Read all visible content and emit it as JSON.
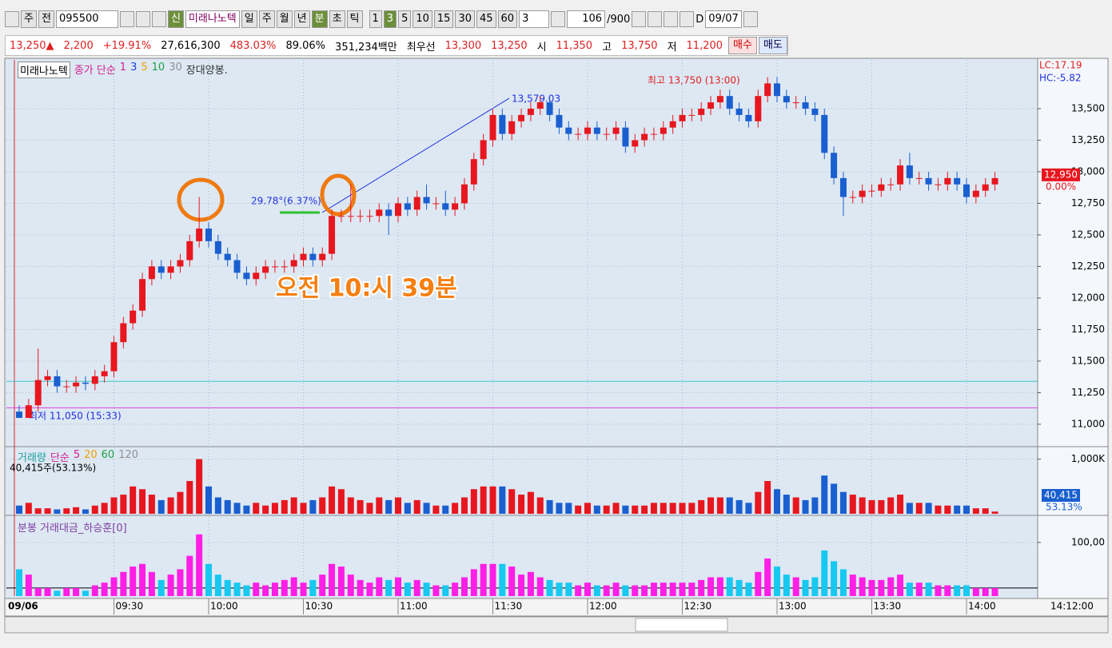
{
  "toolbar": {
    "market": "주",
    "prev": "전",
    "code": "095500",
    "new_badge": "신",
    "name": "미래나노텍",
    "periods": [
      "일",
      "주",
      "월",
      "년",
      "분",
      "초",
      "틱"
    ],
    "intervals": [
      "1",
      "3",
      "5",
      "10",
      "15",
      "30",
      "45",
      "60"
    ],
    "interval_input": "3",
    "count": "106",
    "max": "/900",
    "d_label": "D",
    "date": "09/07"
  },
  "quote": {
    "price": "13,250▲",
    "change": "2,200",
    "change_pct": "+19.91%",
    "volume": "27,616,300",
    "vol_ratio": "483.03%",
    "rate": "89.06%",
    "amount": "351,234백만",
    "best_label": "최우선",
    "ask": "13,300",
    "bid": "13,250",
    "open_label": "시",
    "open": "11,350",
    "high_label": "고",
    "high": "13,750",
    "low_label": "저",
    "low": "11,200",
    "buy": "매수",
    "sell": "매도"
  },
  "chart_data": [
    {
      "type": "candlestick",
      "title": "미래나노텍",
      "ma_label": "종가 단순",
      "ma_periods": [
        {
          "label": "1",
          "color": "#d02090"
        },
        {
          "label": "3",
          "color": "#2040d0"
        },
        {
          "label": "5",
          "color": "#f0a000"
        },
        {
          "label": "10",
          "color": "#20a040"
        },
        {
          "label": "30",
          "color": "#909090"
        }
      ],
      "note": "장대양봉.",
      "categories": [
        "09/06",
        null,
        null,
        null,
        null,
        null,
        null,
        null,
        null,
        null,
        "09:30",
        null,
        null,
        null,
        null,
        null,
        null,
        null,
        null,
        null,
        "10:00",
        null,
        null,
        null,
        null,
        null,
        null,
        null,
        null,
        null,
        "10:30",
        null,
        null,
        null,
        null,
        null,
        null,
        null,
        null,
        null,
        "11:00",
        null,
        null,
        null,
        null,
        null,
        null,
        null,
        null,
        null,
        "11:30",
        null,
        null,
        null,
        null,
        null,
        null,
        null,
        null,
        null,
        "12:00",
        null,
        null,
        null,
        null,
        null,
        null,
        null,
        null,
        null,
        "12:30",
        null,
        null,
        null,
        null,
        null,
        null,
        null,
        null,
        null,
        "13:00",
        null,
        null,
        null,
        null,
        null,
        null,
        null,
        null,
        null,
        "13:30",
        null,
        null,
        null,
        null,
        null,
        null,
        null,
        null,
        null,
        "14:00",
        null,
        null,
        null
      ],
      "open": [
        11100,
        11050,
        11150,
        11350,
        11380,
        11300,
        11300,
        11330,
        11320,
        11380,
        11420,
        11650,
        11800,
        11900,
        12150,
        12250,
        12200,
        12250,
        12300,
        12450,
        12550,
        12450,
        12350,
        12300,
        12200,
        12150,
        12200,
        12250,
        12250,
        12250,
        12300,
        12350,
        12300,
        12350,
        12650,
        12650,
        12650,
        12650,
        12650,
        12700,
        12650,
        12750,
        12700,
        12800,
        12750,
        12750,
        12700,
        12750,
        12900,
        13100,
        13250,
        13450,
        13300,
        13400,
        13450,
        13500,
        13550,
        13450,
        13350,
        13300,
        13300,
        13350,
        13300,
        13300,
        13350,
        13200,
        13250,
        13300,
        13300,
        13350,
        13400,
        13450,
        13450,
        13500,
        13550,
        13600,
        13500,
        13450,
        13400,
        13600,
        13700,
        13600,
        13550,
        13550,
        13500,
        13450,
        13150,
        12950,
        12800,
        12800,
        12850,
        12850,
        12900,
        12900,
        13050,
        12950,
        12950,
        12900,
        12900,
        12950,
        12900,
        12800,
        12850,
        12900
      ],
      "high": [
        11150,
        11200,
        11600,
        11430,
        11430,
        11350,
        11380,
        11380,
        11430,
        11470,
        11700,
        11850,
        11950,
        12200,
        12300,
        12300,
        12300,
        12350,
        12500,
        12800,
        12600,
        12500,
        12400,
        12350,
        12250,
        12250,
        12300,
        12300,
        12300,
        12350,
        12400,
        12400,
        12400,
        12700,
        12700,
        12900,
        12700,
        12700,
        12750,
        12750,
        12800,
        12800,
        12850,
        12900,
        12800,
        12850,
        12800,
        12950,
        13150,
        13300,
        13500,
        13500,
        13450,
        13500,
        13550,
        13600,
        13600,
        13500,
        13400,
        13350,
        13400,
        13400,
        13350,
        13400,
        13400,
        13300,
        13350,
        13350,
        13400,
        13450,
        13500,
        13500,
        13550,
        13600,
        13650,
        13650,
        13550,
        13500,
        13650,
        13750,
        13750,
        13650,
        13600,
        13600,
        13550,
        13500,
        13200,
        13000,
        12850,
        12900,
        12900,
        12950,
        12950,
        13100,
        13150,
        13000,
        13000,
        12950,
        13000,
        13000,
        12950,
        12900,
        12950,
        13000
      ],
      "low": [
        11050,
        11050,
        11100,
        11300,
        11250,
        11250,
        11250,
        11270,
        11270,
        11330,
        11370,
        11600,
        11750,
        11850,
        12100,
        12150,
        12150,
        12200,
        12250,
        12400,
        12400,
        12300,
        12250,
        12150,
        12100,
        12100,
        12150,
        12200,
        12200,
        12200,
        12250,
        12250,
        12250,
        12300,
        12600,
        12600,
        12600,
        12600,
        12600,
        12500,
        12600,
        12650,
        12650,
        12700,
        12700,
        12650,
        12650,
        12700,
        12850,
        13050,
        13200,
        13250,
        13250,
        13350,
        13400,
        13450,
        13400,
        13300,
        13250,
        13250,
        13250,
        13250,
        13250,
        13250,
        13150,
        13150,
        13200,
        13250,
        13250,
        13300,
        13350,
        13400,
        13400,
        13450,
        13500,
        13450,
        13400,
        13350,
        13350,
        13550,
        13550,
        13500,
        13500,
        13450,
        13400,
        13100,
        12900,
        12650,
        12750,
        12750,
        12800,
        12800,
        12850,
        12850,
        12900,
        12900,
        12850,
        12850,
        12850,
        12850,
        12750,
        12750,
        12800,
        12850
      ],
      "close": [
        11050,
        11150,
        11350,
        11380,
        11300,
        11300,
        11330,
        11320,
        11380,
        11420,
        11650,
        11800,
        11900,
        12150,
        12250,
        12200,
        12250,
        12300,
        12450,
        12550,
        12450,
        12350,
        12300,
        12200,
        12150,
        12200,
        12250,
        12250,
        12250,
        12300,
        12350,
        12300,
        12350,
        12650,
        12650,
        12650,
        12650,
        12650,
        12700,
        12650,
        12750,
        12700,
        12800,
        12750,
        12750,
        12700,
        12750,
        12900,
        13100,
        13250,
        13450,
        13300,
        13400,
        13450,
        13500,
        13550,
        13450,
        13350,
        13300,
        13300,
        13350,
        13300,
        13300,
        13350,
        13200,
        13250,
        13300,
        13300,
        13350,
        13400,
        13450,
        13450,
        13500,
        13550,
        13600,
        13500,
        13450,
        13400,
        13600,
        13700,
        13600,
        13550,
        13550,
        13500,
        13450,
        13150,
        12950,
        12800,
        12800,
        12850,
        12850,
        12900,
        12900,
        13050,
        12950,
        12950,
        12900,
        12900,
        12950,
        12900,
        12800,
        12850,
        12900,
        12950
      ],
      "up_color": "#e8161e",
      "down_color": "#1a5fd0",
      "ylim": [
        10835,
        13886
      ],
      "yticks": [
        {
          "value": 11000,
          "label": "11,000"
        },
        {
          "value": 11250,
          "label": "11,250"
        },
        {
          "value": 11500,
          "label": "11,500"
        },
        {
          "value": 11750,
          "label": "11,750"
        },
        {
          "value": 12000,
          "label": "12,000"
        },
        {
          "value": 12250,
          "label": "12,250"
        },
        {
          "value": 12500,
          "label": "12,500"
        },
        {
          "value": 12750,
          "label": "12,750"
        },
        {
          "value": 13000,
          "label": "13,000"
        },
        {
          "value": 13250,
          "label": "13,250"
        },
        {
          "value": 13500,
          "label": "13,500"
        }
      ],
      "grid": true,
      "last_label": "12,950",
      "last_pct": "0.00%",
      "lc": "LC:17.19",
      "hc": "HC:-5.82",
      "annotations": {
        "high": "최고 13,750 (13:00)",
        "low": "최저 11,050 (15:33)",
        "trend": "13,579.03",
        "angle": "29.78°(6.37%)",
        "overlay": "오전 10:시 39분"
      },
      "hlines": [
        {
          "value": 11340,
          "color": "#40c8c8"
        },
        {
          "value": 11130,
          "color": "#e040e0"
        }
      ],
      "end_label": "14:12:00"
    },
    {
      "type": "bar",
      "title": "거래량",
      "ma_label": "단순",
      "ma_periods": [
        {
          "label": "5",
          "color": "#d02090"
        },
        {
          "label": "20",
          "color": "#f0a000"
        },
        {
          "label": "60",
          "color": "#20a040"
        },
        {
          "label": "120",
          "color": "#909090"
        }
      ],
      "info": "40,415주(53.13%)",
      "values": [
        150000,
        200000,
        100000,
        100000,
        80000,
        100000,
        120000,
        80000,
        150000,
        200000,
        300000,
        350000,
        500000,
        450000,
        350000,
        250000,
        300000,
        400000,
        600000,
        1000000,
        500000,
        300000,
        250000,
        200000,
        150000,
        200000,
        150000,
        200000,
        250000,
        300000,
        200000,
        250000,
        300000,
        500000,
        450000,
        300000,
        250000,
        200000,
        300000,
        250000,
        300000,
        200000,
        250000,
        200000,
        150000,
        150000,
        200000,
        300000,
        450000,
        500000,
        500000,
        500000,
        450000,
        350000,
        400000,
        300000,
        250000,
        200000,
        200000,
        150000,
        200000,
        150000,
        150000,
        200000,
        150000,
        150000,
        150000,
        200000,
        200000,
        200000,
        200000,
        200000,
        250000,
        300000,
        300000,
        300000,
        250000,
        200000,
        400000,
        600000,
        450000,
        350000,
        300000,
        250000,
        300000,
        700000,
        550000,
        400000,
        350000,
        300000,
        250000,
        250000,
        300000,
        350000,
        200000,
        200000,
        200000,
        150000,
        150000,
        150000,
        150000,
        100000,
        100000,
        40415
      ],
      "ylim": [
        0,
        1170000
      ],
      "yticks": [
        {
          "value": 1000000,
          "label": "1,000K"
        }
      ],
      "last_label": "40,415",
      "last_pct": "53.13%"
    },
    {
      "type": "bar",
      "title": "분봉 거래대금_하승훈[0]",
      "values": [
        50,
        40,
        15,
        15,
        10,
        15,
        15,
        10,
        20,
        25,
        35,
        45,
        55,
        60,
        45,
        30,
        40,
        50,
        75,
        115,
        60,
        40,
        30,
        25,
        20,
        25,
        20,
        25,
        30,
        35,
        25,
        30,
        40,
        60,
        55,
        40,
        30,
        25,
        35,
        30,
        35,
        25,
        30,
        25,
        20,
        20,
        25,
        35,
        50,
        60,
        60,
        60,
        55,
        40,
        45,
        35,
        30,
        25,
        25,
        20,
        25,
        20,
        20,
        25,
        20,
        20,
        20,
        25,
        25,
        25,
        25,
        25,
        30,
        35,
        35,
        35,
        30,
        25,
        45,
        70,
        55,
        40,
        35,
        30,
        35,
        85,
        65,
        50,
        40,
        35,
        30,
        30,
        35,
        40,
        25,
        25,
        25,
        20,
        20,
        20,
        20,
        15,
        15,
        15
      ],
      "ylim": [
        0,
        146
      ],
      "yticks": [
        {
          "value": 100,
          "label": "100,00"
        }
      ],
      "up_color": "#ff1ee6",
      "down_color": "#17c8f0",
      "reference_line": 15
    }
  ]
}
